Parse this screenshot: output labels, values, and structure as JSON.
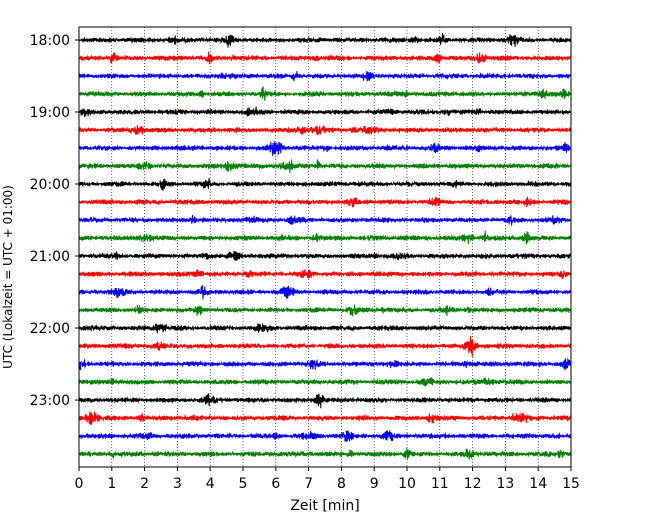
{
  "chart_data": {
    "type": "line",
    "subtype": "helicorder",
    "xlabel": "Zeit  [min]",
    "ylabel": "UTC (Lokalzeit = UTC + 01:00)",
    "xlim": [
      0,
      15
    ],
    "x_ticks": [
      "0",
      "1",
      "2",
      "3",
      "4",
      "5",
      "6",
      "7",
      "8",
      "9",
      "10",
      "11",
      "12",
      "13",
      "14",
      "15"
    ],
    "y_ticks": [
      "18:00",
      "19:00",
      "20:00",
      "21:00",
      "22:00",
      "23:00"
    ],
    "grid": "vertical dotted lines at each minute",
    "trace_colors": [
      "#000000",
      "#ff0000",
      "#0000ff",
      "#007f00"
    ],
    "series": [
      {
        "start": "18:00"
      },
      {
        "start": "18:15"
      },
      {
        "start": "18:30"
      },
      {
        "start": "18:45"
      },
      {
        "start": "19:00"
      },
      {
        "start": "19:15"
      },
      {
        "start": "19:30"
      },
      {
        "start": "19:45"
      },
      {
        "start": "20:00"
      },
      {
        "start": "20:15"
      },
      {
        "start": "20:30"
      },
      {
        "start": "20:45"
      },
      {
        "start": "21:00"
      },
      {
        "start": "21:15"
      },
      {
        "start": "21:30"
      },
      {
        "start": "21:45"
      },
      {
        "start": "22:00"
      },
      {
        "start": "22:15"
      },
      {
        "start": "22:30"
      },
      {
        "start": "22:45"
      },
      {
        "start": "23:00"
      },
      {
        "start": "23:15"
      },
      {
        "start": "23:30"
      },
      {
        "start": "23:45"
      }
    ]
  }
}
